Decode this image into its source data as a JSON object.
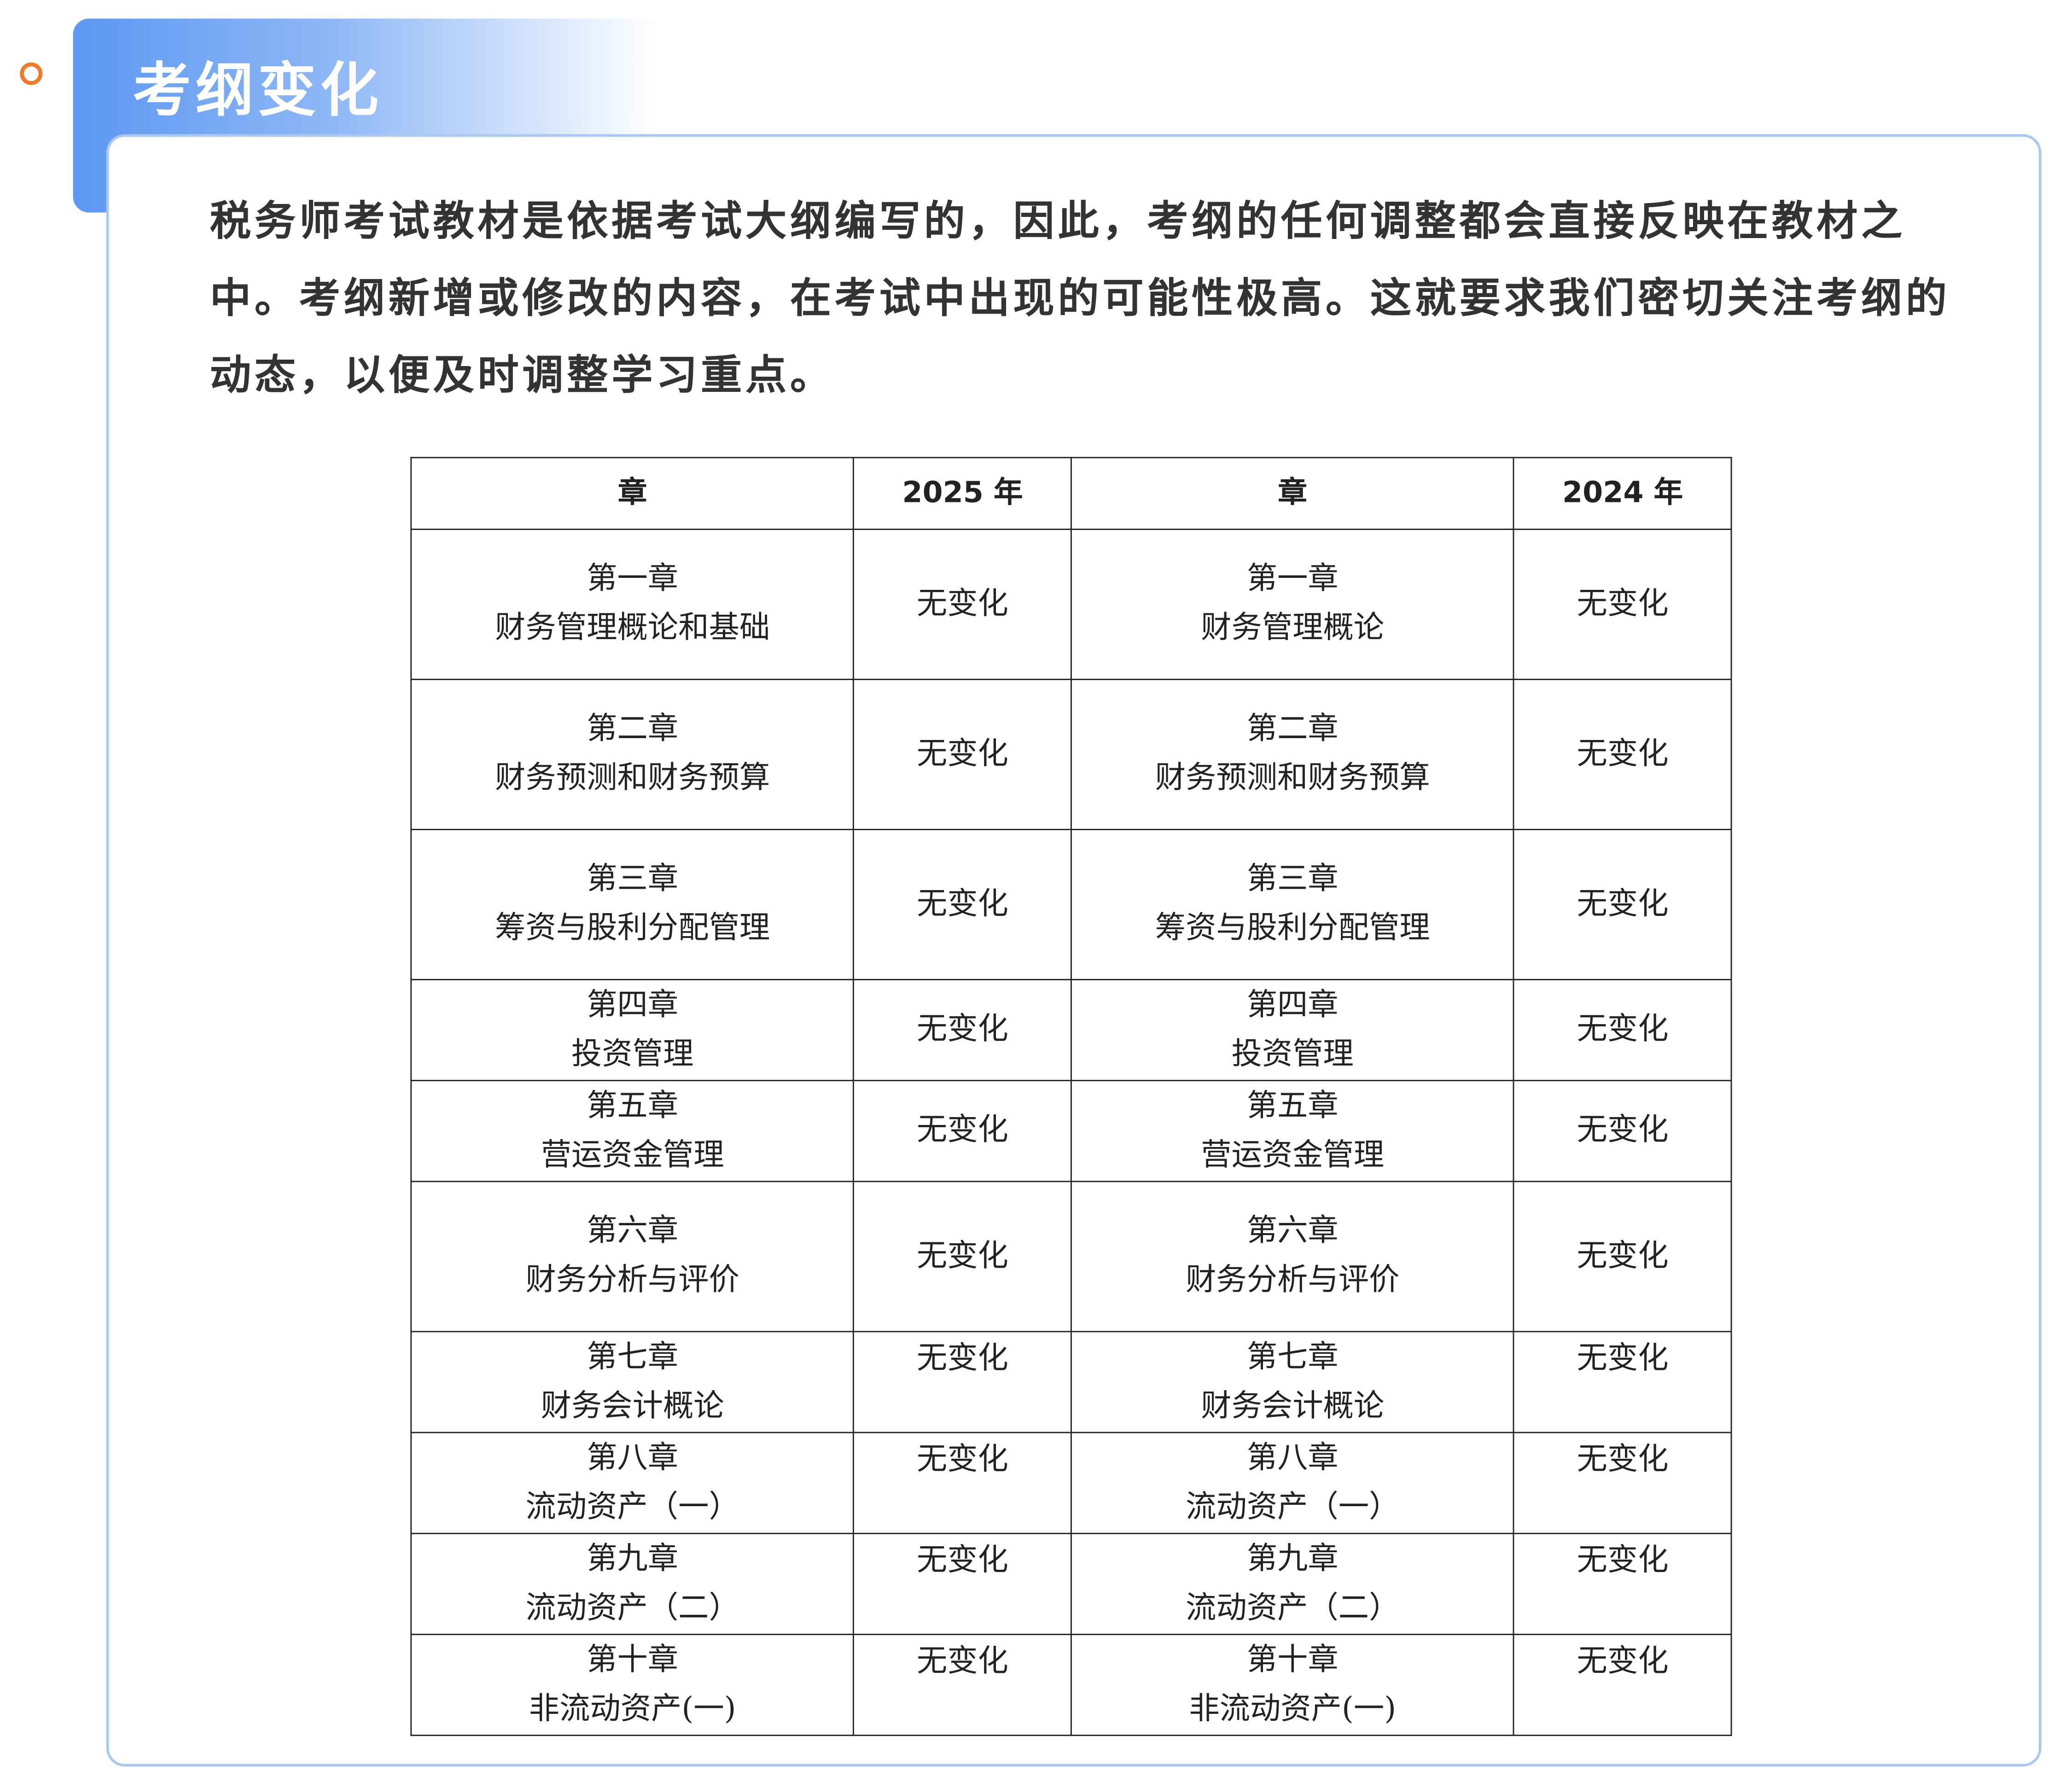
{
  "header": {
    "title": "考纲变化"
  },
  "intro": "税务师考试教材是依据考试大纲编写的，因此，考纲的任何调整都会直接反映在教材之中。考纲新增或修改的内容，在考试中出现的可能性极高。这就要求我们密切关注考纲的动态，以便及时调整学习重点。",
  "table": {
    "headers": [
      "章",
      "2025 年",
      "章",
      "2024 年"
    ],
    "rows": [
      [
        [
          "第一章",
          "财务管理概论和基础"
        ],
        "无变化",
        [
          "第一章",
          "财务管理概论"
        ],
        "无变化"
      ],
      [
        [
          "第二章",
          "财务预测和财务预算"
        ],
        "无变化",
        [
          "第二章",
          "财务预测和财务预算"
        ],
        "无变化"
      ],
      [
        [
          "第三章",
          "筹资与股利分配管理"
        ],
        "无变化",
        [
          "第三章",
          "筹资与股利分配管理"
        ],
        "无变化"
      ],
      [
        [
          "第四章",
          "投资管理"
        ],
        "无变化",
        [
          "第四章",
          "投资管理"
        ],
        "无变化"
      ],
      [
        [
          "第五章",
          "营运资金管理"
        ],
        "无变化",
        [
          "第五章",
          "营运资金管理"
        ],
        "无变化"
      ],
      [
        [
          "第六章",
          "财务分析与评价"
        ],
        "无变化",
        [
          "第六章",
          "财务分析与评价"
        ],
        "无变化"
      ],
      [
        [
          "第七章",
          "财务会计概论"
        ],
        "无变化",
        [
          "第七章",
          "财务会计概论"
        ],
        "无变化"
      ],
      [
        [
          "第八章",
          "流动资产（一）"
        ],
        "无变化",
        [
          "第八章",
          "流动资产（一）"
        ],
        "无变化"
      ],
      [
        [
          "第九章",
          "流动资产（二）"
        ],
        "无变化",
        [
          "第九章",
          "流动资产（二）"
        ],
        "无变化"
      ],
      [
        [
          "第十章",
          "非流动资产(一)"
        ],
        "无变化",
        [
          "第十章",
          "非流动资产(一)"
        ],
        "无变化"
      ]
    ]
  }
}
